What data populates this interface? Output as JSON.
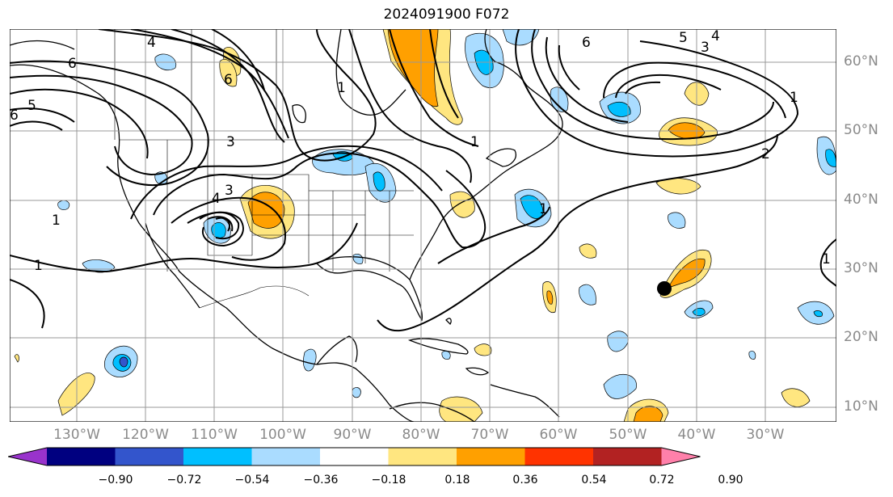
{
  "title": "2024091900 F072",
  "lat_ticks": [
    "60°N",
    "50°N",
    "40°N",
    "30°N",
    "20°N",
    "10°N"
  ],
  "lon_ticks": [
    "130°W",
    "120°W",
    "110°W",
    "100°W",
    "90°W",
    "80°W",
    "70°W",
    "60°W",
    "50°W",
    "40°W",
    "30°W"
  ],
  "colorbar": {
    "labels": [
      "−0.90",
      "−0.72",
      "−0.54",
      "−0.36",
      "−0.18",
      "0.18",
      "0.36",
      "0.54",
      "0.72",
      "0.90"
    ],
    "colors": [
      "#9933cc",
      "#000080",
      "#3355cc",
      "#00bfff",
      "#aadcff",
      "#ffffff",
      "#ffe680",
      "#ffa000",
      "#ff3300",
      "#b22222",
      "#ff80aa"
    ]
  },
  "contour_labels": [
    "6",
    "4",
    "6",
    "3",
    "4",
    "3",
    "1",
    "1",
    "1",
    "1",
    "6",
    "5",
    "3",
    "4",
    "1",
    "2",
    "1",
    "5",
    "6",
    "1"
  ],
  "colors": {
    "light_blue": "#aadcff",
    "blue": "#00bfff",
    "dark_blue": "#3355cc",
    "yellow": "#ffe680",
    "orange": "#ffa000",
    "grid": "#999999"
  }
}
